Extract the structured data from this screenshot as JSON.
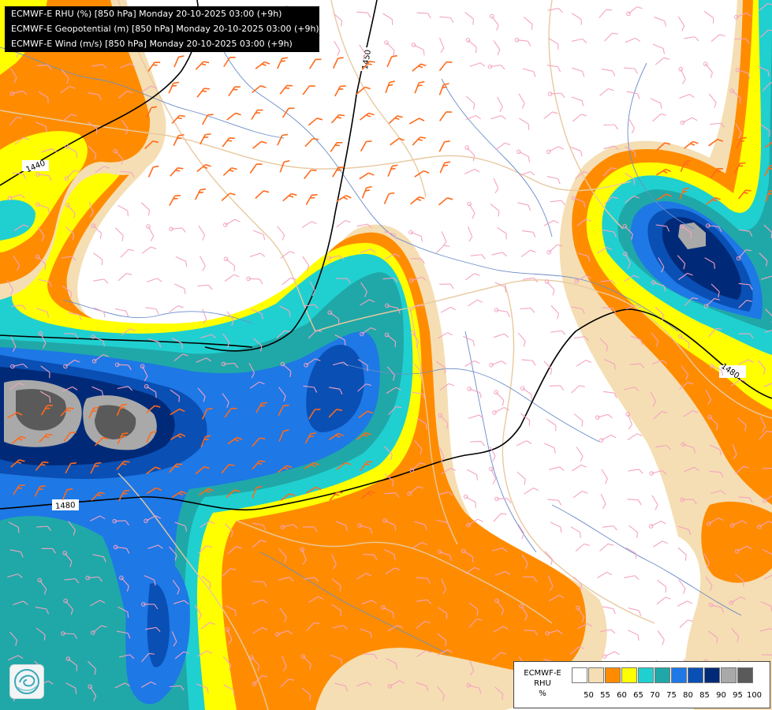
{
  "header": {
    "lines": [
      "ECMWF-E RHU (%) [850 hPa] Monday 20-10-2025 03:00 (+9h)",
      "ECMWF-E Geopotential (m) [850 hPa] Monday 20-10-2025 03:00 (+9h)",
      "ECMWF-E Wind (m/s) [850 hPa] Monday 20-10-2025 03:00 (+9h)"
    ]
  },
  "contours": {
    "labels": [
      "1440",
      "1450",
      "1480",
      "1480"
    ]
  },
  "legend": {
    "title_lines": [
      "ECMWF-E",
      "RHU",
      "%"
    ],
    "ticks": [
      "50",
      "55",
      "60",
      "65",
      "70",
      "75",
      "80",
      "85",
      "90",
      "95",
      "100"
    ],
    "colors": [
      "#ffffff",
      "#f5deb3",
      "#ff8c00",
      "#ffff00",
      "#20d0d0",
      "#20a8a8",
      "#1e78e6",
      "#0a4fb4",
      "#002a78",
      "#a9a9a9",
      "#5a5a5a"
    ]
  },
  "colors": {
    "barb_low": "#f4a3c2",
    "barb_high": "#ff6a1a",
    "border": "#e8c9a0",
    "river": "#6a8cc8",
    "contour": "#000000"
  },
  "logo": {
    "icon": "ecmwf-logo-icon"
  }
}
